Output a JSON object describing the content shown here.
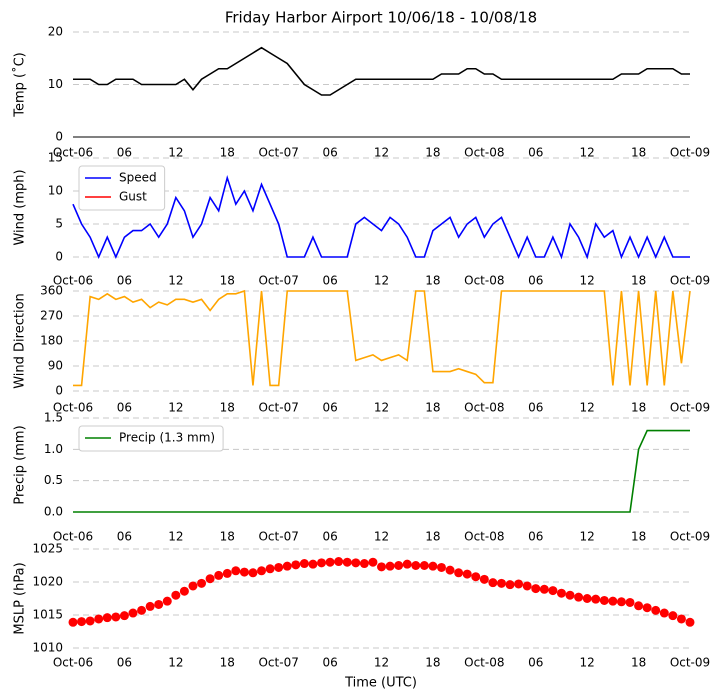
{
  "chart_data": [
    {
      "type": "line",
      "title": "Friday Harbor Airport 10/06/18 - 10/08/18",
      "ylabel": "Temp ($^\\circ$C)",
      "x": [
        0,
        1,
        2,
        3,
        4,
        5,
        6,
        7,
        8,
        9,
        10,
        11,
        12,
        13,
        14,
        15,
        16,
        17,
        18,
        19,
        20,
        21,
        22,
        23,
        24,
        25,
        26,
        27,
        28,
        29,
        30,
        31,
        32,
        33,
        34,
        35,
        36,
        37,
        38,
        39,
        40,
        41,
        42,
        43,
        44,
        45,
        46,
        47,
        48,
        49,
        50,
        51,
        52,
        53,
        54,
        55,
        56,
        57,
        58,
        59,
        60,
        61,
        62,
        63,
        64,
        65,
        66,
        67,
        68,
        69,
        70,
        71,
        72
      ],
      "series": [
        {
          "color": "#000000",
          "values": [
            11,
            11,
            11,
            10,
            10,
            11,
            11,
            11,
            10,
            10,
            10,
            10,
            10,
            11,
            9,
            11,
            12,
            13,
            13,
            14,
            15,
            16,
            17,
            16,
            15,
            14,
            12,
            10,
            9,
            8,
            8,
            9,
            10,
            11,
            11,
            11,
            11,
            11,
            11,
            11,
            11,
            11,
            11,
            12,
            12,
            12,
            13,
            13,
            12,
            12,
            11,
            11,
            11,
            11,
            11,
            11,
            11,
            11,
            11,
            11,
            11,
            11,
            11,
            11,
            12,
            12,
            12,
            13,
            13,
            13,
            13,
            12,
            12
          ]
        }
      ],
      "xlim": [
        0,
        72
      ],
      "xticks": [
        {
          "value": 0,
          "label": "Oct-06"
        },
        {
          "value": 6,
          "label": "06"
        },
        {
          "value": 12,
          "label": "12"
        },
        {
          "value": 18,
          "label": "18"
        },
        {
          "value": 24,
          "label": "Oct-07"
        },
        {
          "value": 30,
          "label": "06"
        },
        {
          "value": 36,
          "label": "12"
        },
        {
          "value": 42,
          "label": "18"
        },
        {
          "value": 48,
          "label": "Oct-08"
        },
        {
          "value": 54,
          "label": "06"
        },
        {
          "value": 60,
          "label": "12"
        },
        {
          "value": 66,
          "label": "18"
        },
        {
          "value": 72,
          "label": "Oct-09"
        }
      ],
      "ylim": [
        0,
        20
      ],
      "yticks": [
        0,
        10,
        20
      ],
      "grid": true
    },
    {
      "type": "line",
      "ylabel": "Wind (mph)",
      "x": [
        0,
        1,
        2,
        3,
        4,
        5,
        6,
        7,
        8,
        9,
        10,
        11,
        12,
        13,
        14,
        15,
        16,
        17,
        18,
        19,
        20,
        21,
        22,
        23,
        24,
        25,
        26,
        27,
        28,
        29,
        30,
        31,
        32,
        33,
        34,
        35,
        36,
        37,
        38,
        39,
        40,
        41,
        42,
        43,
        44,
        45,
        46,
        47,
        48,
        49,
        50,
        51,
        52,
        53,
        54,
        55,
        56,
        57,
        58,
        59,
        60,
        61,
        62,
        63,
        64,
        65,
        66,
        67,
        68,
        69,
        70,
        71,
        72
      ],
      "series": [
        {
          "name": "Speed",
          "color": "#0000ff",
          "values": [
            8,
            5,
            3,
            0,
            3,
            0,
            3,
            4,
            4,
            5,
            3,
            5,
            9,
            7,
            3,
            5,
            9,
            7,
            12,
            8,
            10,
            7,
            11,
            8,
            5,
            0,
            0,
            0,
            3,
            0,
            0,
            0,
            0,
            5,
            6,
            5,
            4,
            6,
            5,
            3,
            0,
            0,
            4,
            5,
            6,
            3,
            5,
            6,
            3,
            5,
            6,
            3,
            0,
            3,
            0,
            0,
            3,
            0,
            5,
            3,
            0,
            5,
            3,
            4,
            0,
            3,
            0,
            3,
            0,
            3,
            0,
            0,
            0
          ]
        },
        {
          "name": "Gust",
          "color": "#ff0000",
          "values": [
            null,
            null,
            null,
            null,
            null,
            null,
            null,
            null,
            null,
            null,
            null,
            null,
            null,
            null,
            null,
            null,
            null,
            null,
            null,
            null,
            null,
            null,
            null,
            null,
            null,
            null,
            null,
            null,
            null,
            null,
            null,
            null,
            null,
            null,
            null,
            null,
            null,
            null,
            null,
            null,
            null,
            null,
            null,
            null,
            null,
            null,
            null,
            null,
            null,
            null,
            null,
            null,
            null,
            null,
            null,
            null,
            null,
            null,
            null,
            null,
            null,
            null,
            null,
            null,
            null,
            null,
            null,
            null,
            null,
            null,
            null,
            null,
            null
          ]
        }
      ],
      "xlim": [
        0,
        72
      ],
      "xticks": [
        {
          "value": 0,
          "label": "Oct-06"
        },
        {
          "value": 6,
          "label": "06"
        },
        {
          "value": 12,
          "label": "12"
        },
        {
          "value": 18,
          "label": "18"
        },
        {
          "value": 24,
          "label": "Oct-07"
        },
        {
          "value": 30,
          "label": "06"
        },
        {
          "value": 36,
          "label": "12"
        },
        {
          "value": 42,
          "label": "18"
        },
        {
          "value": 48,
          "label": "Oct-08"
        },
        {
          "value": 54,
          "label": "06"
        },
        {
          "value": 60,
          "label": "12"
        },
        {
          "value": 66,
          "label": "18"
        },
        {
          "value": 72,
          "label": "Oct-09"
        }
      ],
      "ylim": [
        0,
        15
      ],
      "yticks": [
        0,
        5,
        10,
        15
      ],
      "grid": true,
      "legend": "upper left"
    },
    {
      "type": "line",
      "ylabel": "Wind Direction",
      "x": [
        0,
        1,
        2,
        3,
        4,
        5,
        6,
        7,
        8,
        9,
        10,
        11,
        12,
        13,
        14,
        15,
        16,
        17,
        18,
        19,
        20,
        21,
        22,
        23,
        24,
        25,
        26,
        27,
        28,
        29,
        30,
        31,
        32,
        33,
        34,
        35,
        36,
        37,
        38,
        39,
        40,
        41,
        42,
        43,
        44,
        45,
        46,
        47,
        48,
        49,
        50,
        51,
        52,
        53,
        54,
        55,
        56,
        57,
        58,
        59,
        60,
        61,
        62,
        63,
        64,
        65,
        66,
        67,
        68,
        69,
        70,
        71,
        72
      ],
      "series": [
        {
          "color": "#ffa500",
          "values": [
            20,
            20,
            340,
            330,
            350,
            330,
            340,
            320,
            330,
            300,
            320,
            310,
            330,
            330,
            320,
            330,
            290,
            330,
            350,
            350,
            360,
            20,
            360,
            20,
            20,
            360,
            360,
            360,
            360,
            360,
            360,
            360,
            360,
            110,
            120,
            130,
            110,
            120,
            130,
            110,
            360,
            360,
            70,
            70,
            70,
            80,
            70,
            60,
            30,
            30,
            360,
            360,
            360,
            360,
            360,
            360,
            360,
            360,
            360,
            360,
            360,
            360,
            360,
            20,
            360,
            20,
            360,
            20,
            360,
            20,
            360,
            100,
            360
          ]
        }
      ],
      "xlim": [
        0,
        72
      ],
      "xticks": [
        {
          "value": 0,
          "label": "Oct-06"
        },
        {
          "value": 6,
          "label": "06"
        },
        {
          "value": 12,
          "label": "12"
        },
        {
          "value": 18,
          "label": "18"
        },
        {
          "value": 24,
          "label": "Oct-07"
        },
        {
          "value": 30,
          "label": "06"
        },
        {
          "value": 36,
          "label": "12"
        },
        {
          "value": 42,
          "label": "18"
        },
        {
          "value": 48,
          "label": "Oct-08"
        },
        {
          "value": 54,
          "label": "06"
        },
        {
          "value": 60,
          "label": "12"
        },
        {
          "value": 66,
          "label": "18"
        },
        {
          "value": 72,
          "label": "Oct-09"
        }
      ],
      "ylim": [
        0,
        360
      ],
      "yticks": [
        0,
        90,
        180,
        270,
        360
      ],
      "grid": true
    },
    {
      "type": "line",
      "ylabel": "Precip (mm)",
      "x": [
        0,
        1,
        2,
        3,
        4,
        5,
        6,
        7,
        8,
        9,
        10,
        11,
        12,
        13,
        14,
        15,
        16,
        17,
        18,
        19,
        20,
        21,
        22,
        23,
        24,
        25,
        26,
        27,
        28,
        29,
        30,
        31,
        32,
        33,
        34,
        35,
        36,
        37,
        38,
        39,
        40,
        41,
        42,
        43,
        44,
        45,
        46,
        47,
        48,
        49,
        50,
        51,
        52,
        53,
        54,
        55,
        56,
        57,
        58,
        59,
        60,
        61,
        62,
        63,
        64,
        65,
        66,
        67,
        68,
        69,
        70,
        71,
        72
      ],
      "series": [
        {
          "name": "Precip (1.3 mm)",
          "color": "#008000",
          "values": [
            0,
            0,
            0,
            0,
            0,
            0,
            0,
            0,
            0,
            0,
            0,
            0,
            0,
            0,
            0,
            0,
            0,
            0,
            0,
            0,
            0,
            0,
            0,
            0,
            0,
            0,
            0,
            0,
            0,
            0,
            0,
            0,
            0,
            0,
            0,
            0,
            0,
            0,
            0,
            0,
            0,
            0,
            0,
            0,
            0,
            0,
            0,
            0,
            0,
            0,
            0,
            0,
            0,
            0,
            0,
            0,
            0,
            0,
            0,
            0,
            0,
            0,
            0,
            0,
            0,
            0,
            1.0,
            1.3,
            1.3,
            1.3,
            1.3,
            1.3,
            1.3
          ]
        }
      ],
      "xlim": [
        0,
        72
      ],
      "xticks": [
        {
          "value": 0,
          "label": "Oct-06"
        },
        {
          "value": 6,
          "label": "06"
        },
        {
          "value": 12,
          "label": "12"
        },
        {
          "value": 18,
          "label": "18"
        },
        {
          "value": 24,
          "label": "Oct-07"
        },
        {
          "value": 30,
          "label": "06"
        },
        {
          "value": 36,
          "label": "12"
        },
        {
          "value": 42,
          "label": "18"
        },
        {
          "value": 48,
          "label": "Oct-08"
        },
        {
          "value": 54,
          "label": "06"
        },
        {
          "value": 60,
          "label": "12"
        },
        {
          "value": 66,
          "label": "18"
        },
        {
          "value": 72,
          "label": "Oct-09"
        }
      ],
      "ylim": [
        0,
        1.5
      ],
      "yticks": [
        {
          "value": 0,
          "label": "0.0"
        },
        {
          "value": 0.5,
          "label": "0.5"
        },
        {
          "value": 1,
          "label": "1.0"
        },
        {
          "value": 1.5,
          "label": "1.5"
        }
      ],
      "grid": true,
      "legend": "upper left"
    },
    {
      "type": "scatter",
      "ylabel": "MSLP (hPa)",
      "xlabel": "Time (UTC)",
      "x": [
        0,
        1,
        2,
        3,
        4,
        5,
        6,
        7,
        8,
        9,
        10,
        11,
        12,
        13,
        14,
        15,
        16,
        17,
        18,
        19,
        20,
        21,
        22,
        23,
        24,
        25,
        26,
        27,
        28,
        29,
        30,
        31,
        32,
        33,
        34,
        35,
        36,
        37,
        38,
        39,
        40,
        41,
        42,
        43,
        44,
        45,
        46,
        47,
        48,
        49,
        50,
        51,
        52,
        53,
        54,
        55,
        56,
        57,
        58,
        59,
        60,
        61,
        62,
        63,
        64,
        65,
        66,
        67,
        68,
        69,
        70,
        71,
        72
      ],
      "series": [
        {
          "color": "#ff0000",
          "values": [
            1013.9,
            1014.0,
            1014.1,
            1014.4,
            1014.6,
            1014.7,
            1014.9,
            1015.3,
            1015.7,
            1016.3,
            1016.6,
            1017.1,
            1018.0,
            1018.6,
            1019.4,
            1019.8,
            1020.5,
            1021.0,
            1021.3,
            1021.7,
            1021.5,
            1021.4,
            1021.7,
            1022.0,
            1022.2,
            1022.4,
            1022.6,
            1022.8,
            1022.7,
            1022.9,
            1023.0,
            1023.1,
            1023.0,
            1022.9,
            1022.8,
            1023.0,
            1022.3,
            1022.4,
            1022.5,
            1022.7,
            1022.5,
            1022.5,
            1022.4,
            1022.2,
            1021.8,
            1021.4,
            1021.2,
            1020.8,
            1020.4,
            1019.9,
            1019.8,
            1019.6,
            1019.7,
            1019.4,
            1019.0,
            1018.9,
            1018.7,
            1018.3,
            1018.0,
            1017.7,
            1017.5,
            1017.4,
            1017.2,
            1017.1,
            1017.0,
            1016.9,
            1016.4,
            1016.1,
            1015.7,
            1015.3,
            1014.9,
            1014.4,
            1013.9
          ]
        }
      ],
      "xlim": [
        0,
        72
      ],
      "xticks": [
        {
          "value": 0,
          "label": "Oct-06"
        },
        {
          "value": 6,
          "label": "06"
        },
        {
          "value": 12,
          "label": "12"
        },
        {
          "value": 18,
          "label": "18"
        },
        {
          "value": 24,
          "label": "Oct-07"
        },
        {
          "value": 30,
          "label": "06"
        },
        {
          "value": 36,
          "label": "12"
        },
        {
          "value": 42,
          "label": "18"
        },
        {
          "value": 48,
          "label": "Oct-08"
        },
        {
          "value": 54,
          "label": "06"
        },
        {
          "value": 60,
          "label": "12"
        },
        {
          "value": 66,
          "label": "18"
        },
        {
          "value": 72,
          "label": "Oct-09"
        }
      ],
      "ylim": [
        1010,
        1025
      ],
      "yticks": [
        1010,
        1015,
        1020,
        1025
      ],
      "grid": true
    }
  ]
}
